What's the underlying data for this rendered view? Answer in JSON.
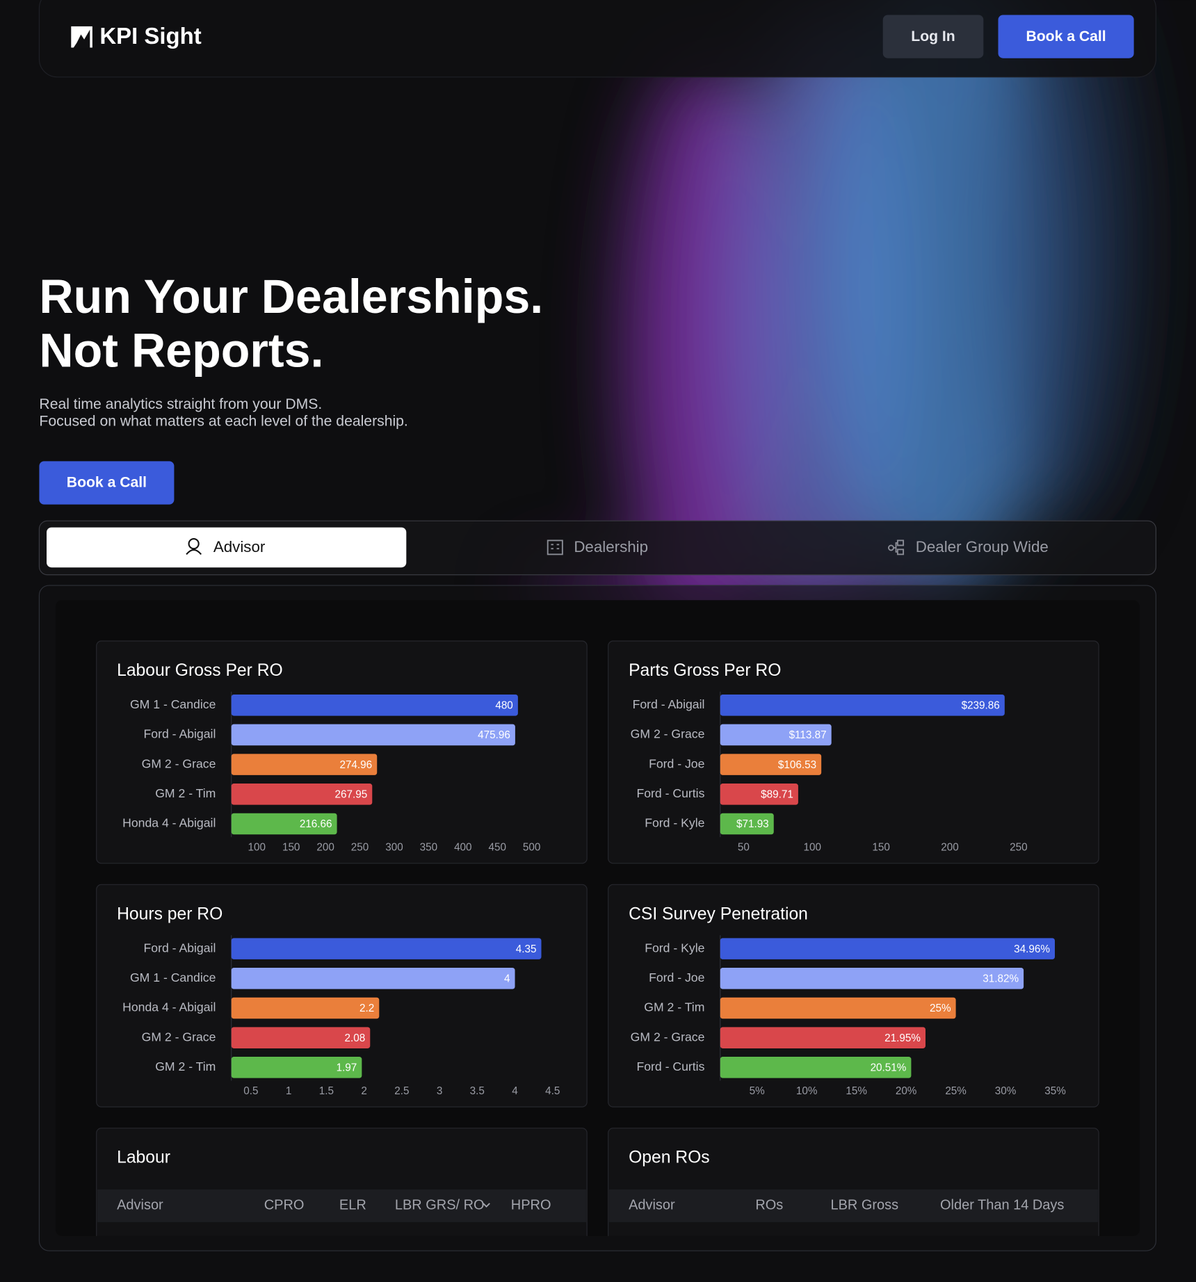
{
  "nav": {
    "brand": "KPI Sight",
    "login": "Log In",
    "cta": "Book a Call"
  },
  "hero": {
    "title_lines": [
      "Run Your Dealerships.",
      "Not Reports."
    ],
    "subtitle_lines": [
      "Real time analytics straight from your DMS.",
      "Focused on what matters at each level of the dealership."
    ],
    "cta": "Book a Call"
  },
  "tabs": [
    "Advisor",
    "Dealership",
    "Dealer Group Wide"
  ],
  "chart_data": [
    {
      "type": "bar",
      "title": "Labour Gross Per RO",
      "categories": [
        "GM 1 - Candice",
        "Ford - Abigail",
        "GM 2 - Grace",
        "GM 2 - Tim",
        "Honda 4 - Abigail"
      ],
      "values": [
        480,
        475.96,
        274.96,
        267.95,
        216.66
      ],
      "colors": [
        "#3b5bdb",
        "#8ea2f6",
        "#ea7f3b",
        "#d9474b",
        "#5db84b"
      ],
      "xlim": [
        63,
        559
      ],
      "xticks": [
        100,
        150,
        200,
        250,
        300,
        350,
        400,
        450,
        500
      ]
    },
    {
      "type": "bar",
      "title": "Parts Gross Per RO",
      "categories": [
        "Ford - Abigail",
        "GM 2 - Grace",
        "Ford - Joe",
        "Ford - Curtis",
        "Ford - Kyle"
      ],
      "values": [
        239.86,
        113.87,
        106.53,
        89.71,
        71.93
      ],
      "value_labels": [
        "$239.86",
        "$113.87",
        "$106.53",
        "$89.71",
        "$71.93"
      ],
      "colors": [
        "#3b5bdb",
        "#8ea2f6",
        "#ea7f3b",
        "#d9474b",
        "#5db84b"
      ],
      "xlim": [
        33,
        294
      ],
      "xticks": [
        50,
        100,
        150,
        200,
        250
      ]
    },
    {
      "type": "bar",
      "title": "Hours per RO",
      "categories": [
        "Ford - Abigail",
        "GM 1 - Candice",
        "Honda 4 - Abigail",
        "GM 2 - Grace",
        "GM 2 - Tim"
      ],
      "values": [
        4.35,
        4,
        2.2,
        2.08,
        1.97
      ],
      "colors": [
        "#3b5bdb",
        "#8ea2f6",
        "#ea7f3b",
        "#d9474b",
        "#5db84b"
      ],
      "xlim": [
        0.24,
        4.76
      ],
      "xticks": [
        0.5,
        1,
        1.5,
        2,
        2.5,
        3,
        3.5,
        4,
        4.5
      ]
    },
    {
      "type": "bar",
      "title": "CSI Survey Penetration",
      "categories": [
        "Ford - Kyle",
        "Ford - Joe",
        "GM 2 - Tim",
        "GM 2 - Grace",
        "Ford - Curtis"
      ],
      "values": [
        34.96,
        31.82,
        25,
        21.95,
        20.51
      ],
      "value_labels": [
        "34.96%",
        "31.82%",
        "25%",
        "21.95%",
        "20.51%"
      ],
      "colors": [
        "#3b5bdb",
        "#8ea2f6",
        "#ea7f3b",
        "#d9474b",
        "#5db84b"
      ],
      "xlim": [
        1.3,
        37.4
      ],
      "xticks": [
        {
          "value": 5,
          "label": "5%"
        },
        {
          "value": 10,
          "label": "10%"
        },
        {
          "value": 15,
          "label": "15%"
        },
        {
          "value": 20,
          "label": "20%"
        },
        {
          "value": 25,
          "label": "25%"
        },
        {
          "value": 30,
          "label": "30%"
        },
        {
          "value": 35,
          "label": "35%"
        }
      ]
    }
  ],
  "tables": [
    {
      "title": "Labour",
      "columns": [
        "Advisor",
        "CPRO",
        "ELR",
        "LBR GRS/ RO",
        "HPRO"
      ]
    },
    {
      "title": "Open ROs",
      "columns": [
        "Advisor",
        "ROs",
        "LBR Gross",
        "Older Than 14 Days"
      ]
    }
  ]
}
